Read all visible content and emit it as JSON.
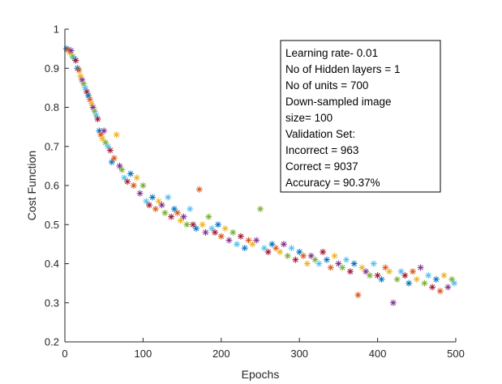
{
  "chart_data": {
    "type": "scatter",
    "title": "",
    "xlabel": "Epochs",
    "ylabel": "Cost Function",
    "xlim": [
      0,
      500
    ],
    "ylim": [
      0.2,
      1
    ],
    "x_ticks": [
      "0",
      "100",
      "200",
      "300",
      "400",
      "500"
    ],
    "y_ticks": [
      "0.2",
      "0.3",
      "0.4",
      "0.5",
      "0.6",
      "0.7",
      "0.8",
      "0.9",
      "1"
    ],
    "marker": "asterisk",
    "grid": false,
    "legend": null,
    "series_colors": [
      "#0072BD",
      "#D95319",
      "#EDB120",
      "#7E2F8E",
      "#77AC30",
      "#4DBEEE",
      "#A2142F"
    ],
    "points": [
      [
        2,
        0.95
      ],
      [
        4,
        0.948
      ],
      [
        6,
        0.94
      ],
      [
        8,
        0.945
      ],
      [
        10,
        0.93
      ],
      [
        12,
        0.925
      ],
      [
        14,
        0.92
      ],
      [
        16,
        0.9
      ],
      [
        18,
        0.895
      ],
      [
        20,
        0.88
      ],
      [
        22,
        0.87
      ],
      [
        24,
        0.86
      ],
      [
        26,
        0.85
      ],
      [
        28,
        0.84
      ],
      [
        30,
        0.83
      ],
      [
        32,
        0.82
      ],
      [
        34,
        0.81
      ],
      [
        36,
        0.8
      ],
      [
        38,
        0.79
      ],
      [
        40,
        0.78
      ],
      [
        42,
        0.77
      ],
      [
        44,
        0.74
      ],
      [
        46,
        0.73
      ],
      [
        48,
        0.72
      ],
      [
        50,
        0.74
      ],
      [
        52,
        0.71
      ],
      [
        55,
        0.7
      ],
      [
        58,
        0.69
      ],
      [
        60,
        0.66
      ],
      [
        63,
        0.67
      ],
      [
        66,
        0.73
      ],
      [
        70,
        0.65
      ],
      [
        73,
        0.64
      ],
      [
        76,
        0.62
      ],
      [
        80,
        0.61
      ],
      [
        84,
        0.63
      ],
      [
        88,
        0.6
      ],
      [
        92,
        0.62
      ],
      [
        96,
        0.58
      ],
      [
        100,
        0.6
      ],
      [
        104,
        0.56
      ],
      [
        108,
        0.55
      ],
      [
        112,
        0.57
      ],
      [
        116,
        0.54
      ],
      [
        120,
        0.56
      ],
      [
        124,
        0.55
      ],
      [
        128,
        0.53
      ],
      [
        132,
        0.57
      ],
      [
        136,
        0.52
      ],
      [
        140,
        0.54
      ],
      [
        144,
        0.53
      ],
      [
        148,
        0.51
      ],
      [
        152,
        0.52
      ],
      [
        156,
        0.5
      ],
      [
        160,
        0.54
      ],
      [
        164,
        0.5
      ],
      [
        168,
        0.49
      ],
      [
        172,
        0.59
      ],
      [
        176,
        0.5
      ],
      [
        180,
        0.48
      ],
      [
        184,
        0.52
      ],
      [
        188,
        0.49
      ],
      [
        192,
        0.48
      ],
      [
        196,
        0.5
      ],
      [
        200,
        0.47
      ],
      [
        205,
        0.49
      ],
      [
        210,
        0.46
      ],
      [
        215,
        0.48
      ],
      [
        220,
        0.45
      ],
      [
        225,
        0.47
      ],
      [
        230,
        0.44
      ],
      [
        235,
        0.46
      ],
      [
        240,
        0.45
      ],
      [
        245,
        0.46
      ],
      [
        250,
        0.54
      ],
      [
        255,
        0.44
      ],
      [
        260,
        0.43
      ],
      [
        265,
        0.45
      ],
      [
        270,
        0.44
      ],
      [
        275,
        0.43
      ],
      [
        280,
        0.45
      ],
      [
        285,
        0.42
      ],
      [
        290,
        0.44
      ],
      [
        295,
        0.41
      ],
      [
        300,
        0.43
      ],
      [
        305,
        0.42
      ],
      [
        310,
        0.4
      ],
      [
        315,
        0.42
      ],
      [
        320,
        0.41
      ],
      [
        325,
        0.4
      ],
      [
        330,
        0.43
      ],
      [
        335,
        0.41
      ],
      [
        340,
        0.39
      ],
      [
        345,
        0.42
      ],
      [
        350,
        0.4
      ],
      [
        355,
        0.39
      ],
      [
        360,
        0.41
      ],
      [
        365,
        0.38
      ],
      [
        370,
        0.4
      ],
      [
        375,
        0.32
      ],
      [
        380,
        0.39
      ],
      [
        385,
        0.38
      ],
      [
        390,
        0.37
      ],
      [
        395,
        0.4
      ],
      [
        400,
        0.37
      ],
      [
        405,
        0.36
      ],
      [
        410,
        0.39
      ],
      [
        415,
        0.38
      ],
      [
        420,
        0.3
      ],
      [
        425,
        0.36
      ],
      [
        430,
        0.38
      ],
      [
        435,
        0.37
      ],
      [
        440,
        0.35
      ],
      [
        445,
        0.38
      ],
      [
        450,
        0.36
      ],
      [
        455,
        0.39
      ],
      [
        460,
        0.35
      ],
      [
        465,
        0.37
      ],
      [
        470,
        0.34
      ],
      [
        475,
        0.36
      ],
      [
        480,
        0.33
      ],
      [
        485,
        0.37
      ],
      [
        490,
        0.34
      ],
      [
        495,
        0.36
      ],
      [
        498,
        0.35
      ]
    ]
  },
  "annotation": {
    "lines": [
      "Learning rate- 0.01",
      "No of Hidden layers = 1",
      "No of units = 700",
      "Down-sampled image",
      "size= 100",
      "Validation Set:",
      "Incorrect = 963",
      "Correct = 9037",
      "Accuracy = 90.37%"
    ]
  }
}
